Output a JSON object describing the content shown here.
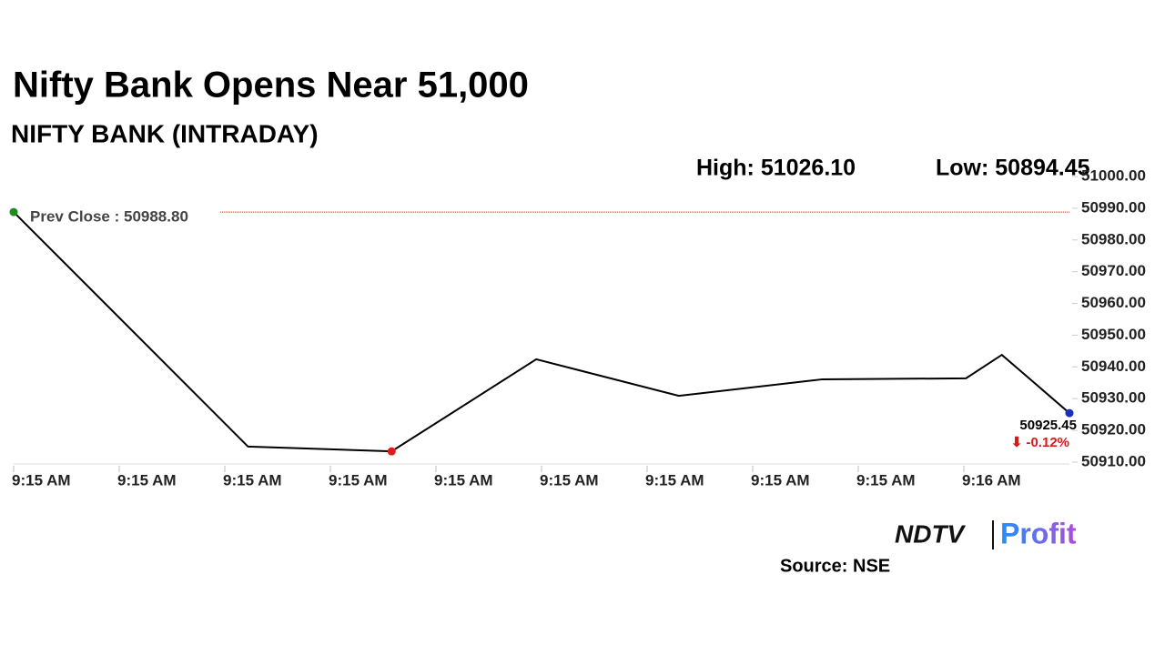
{
  "chart_data": {
    "type": "line",
    "title": "Nifty Bank Opens Near 51,000",
    "subtitle": "NIFTY BANK (INTRADAY)",
    "high_text": "High: 51026.10",
    "low_text": "Low: 50894.45",
    "x": [
      0,
      2.22,
      3.58,
      4.95,
      6.3,
      7.66,
      9.02,
      9.36,
      10
    ],
    "series": [
      {
        "name": "NIFTY BANK",
        "color": "#000000",
        "values": [
          50988.8,
          50914.9,
          50913.4,
          50942.4,
          50930.9,
          50936.1,
          50936.4,
          50943.8,
          50925.45
        ],
        "value_labels": [
          null,
          null,
          null,
          null,
          null,
          null,
          null,
          null,
          "50925.45"
        ],
        "marker_colors": [
          "#1e8c1e",
          null,
          "#e01b1b",
          null,
          null,
          null,
          null,
          null,
          "#1a2fc0"
        ]
      }
    ],
    "change_label": "⬇ -0.12%",
    "change_color": "#d61a1a",
    "prev_close": {
      "value": 50988.8,
      "label": "Prev Close : 50988.80"
    },
    "prev_close_color": "#c0392b",
    "xlim": [
      0,
      10
    ],
    "xticks": [
      {
        "value": 0,
        "label": "9:15 AM"
      },
      {
        "value": 1,
        "label": "9:15 AM"
      },
      {
        "value": 2,
        "label": "9:15 AM"
      },
      {
        "value": 3,
        "label": "9:15 AM"
      },
      {
        "value": 4,
        "label": "9:15 AM"
      },
      {
        "value": 5,
        "label": "9:15 AM"
      },
      {
        "value": 6,
        "label": "9:15 AM"
      },
      {
        "value": 7,
        "label": "9:15 AM"
      },
      {
        "value": 8,
        "label": "9:15 AM"
      },
      {
        "value": 9,
        "label": "9:16 AM"
      }
    ],
    "ylim": [
      50910,
      51000
    ],
    "yticks": [
      {
        "value": 50910,
        "label": "50910.00"
      },
      {
        "value": 50920,
        "label": "50920.00"
      },
      {
        "value": 50930,
        "label": "50930.00"
      },
      {
        "value": 50940,
        "label": "50940.00"
      },
      {
        "value": 50950,
        "label": "50950.00"
      },
      {
        "value": 50960,
        "label": "50960.00"
      },
      {
        "value": 50970,
        "label": "50970.00"
      },
      {
        "value": 50980,
        "label": "50980.00"
      },
      {
        "value": 50990,
        "label": "50990.00"
      },
      {
        "value": 51000,
        "label": "51000.00"
      }
    ],
    "source": "Source: NSE",
    "logo": {
      "left": "NDTV",
      "right": "Profit"
    }
  }
}
